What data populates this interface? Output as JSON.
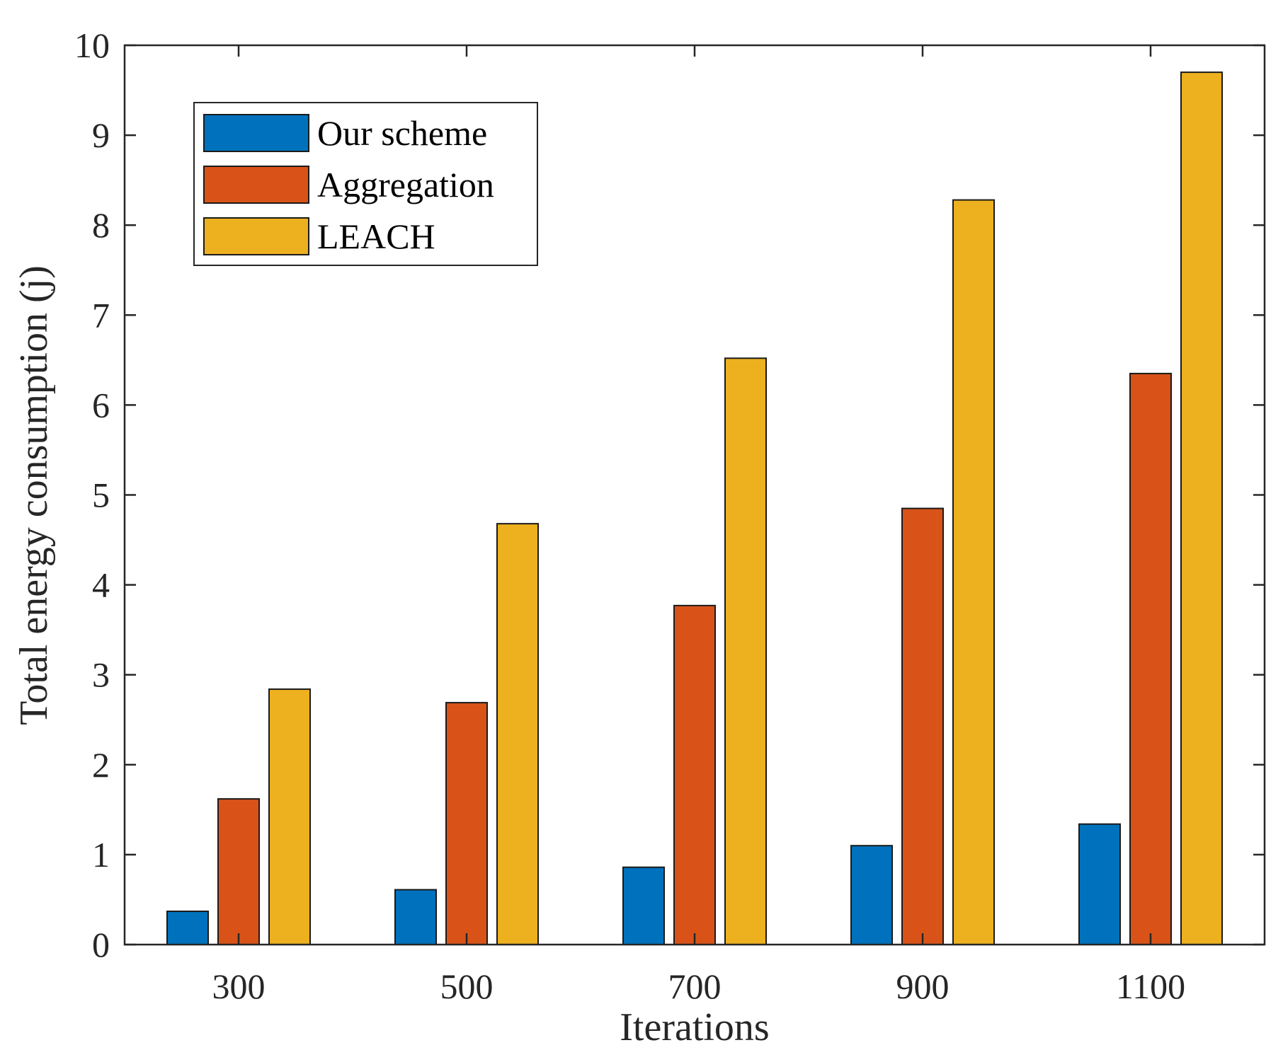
{
  "chart_data": {
    "type": "bar",
    "title": "",
    "xlabel": "Iterations",
    "ylabel": "Total energy consumption (j)",
    "categories": [
      "300",
      "500",
      "700",
      "900",
      "1100"
    ],
    "ylim": [
      0,
      10
    ],
    "yticks": [
      "0",
      "1",
      "2",
      "3",
      "4",
      "5",
      "6",
      "7",
      "8",
      "9",
      "10"
    ],
    "grid": false,
    "legend_position": "top-left",
    "series": [
      {
        "name": "Our scheme",
        "color": "#0072BD",
        "values": [
          0.37,
          0.61,
          0.86,
          1.1,
          1.34
        ]
      },
      {
        "name": "Aggregation",
        "color": "#D95319",
        "values": [
          1.62,
          2.69,
          3.77,
          4.85,
          6.35
        ]
      },
      {
        "name": "LEACH",
        "color": "#EDB120",
        "values": [
          2.84,
          4.68,
          6.52,
          8.28,
          9.7
        ]
      }
    ]
  }
}
